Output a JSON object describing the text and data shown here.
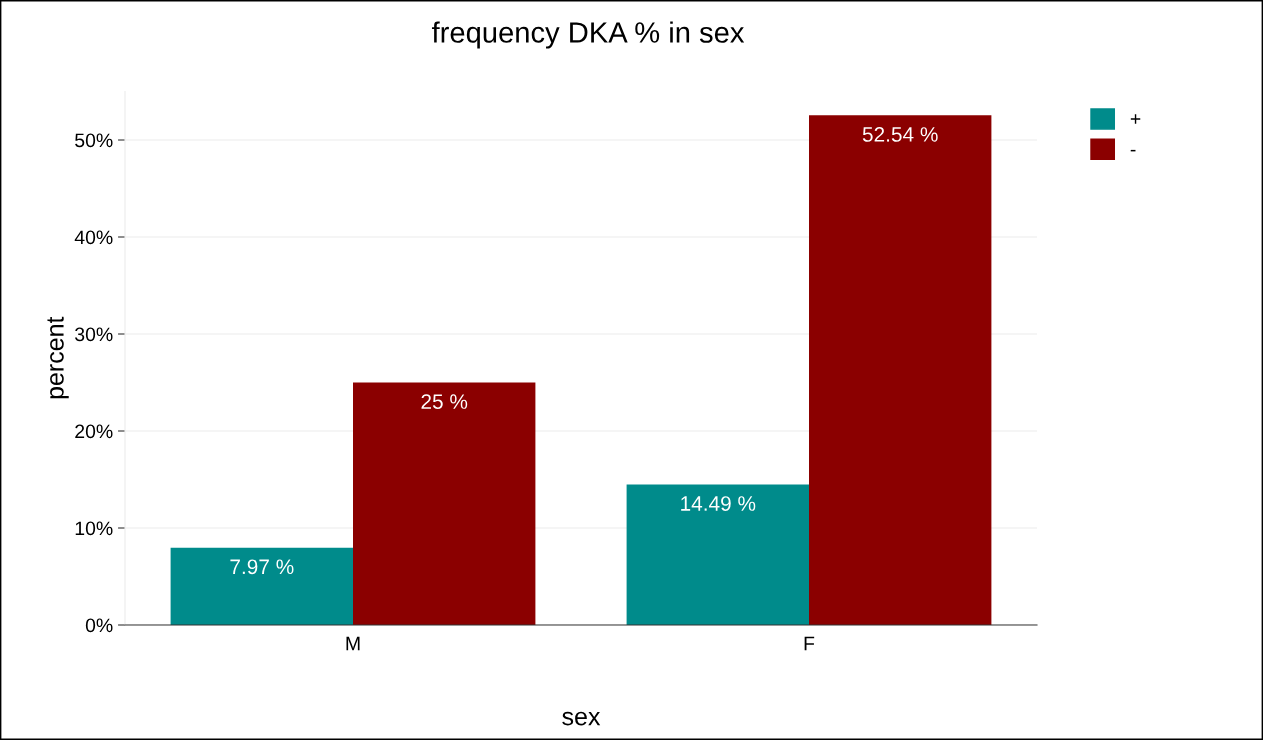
{
  "chart_data": {
    "type": "bar",
    "title": "frequency DKA % in sex",
    "xlabel": "sex",
    "ylabel": "percent",
    "categories": [
      "M",
      "F"
    ],
    "series": [
      {
        "name": "+",
        "color": "#008b8b",
        "values": [
          7.97,
          14.49
        ],
        "value_labels": [
          "7.97 %",
          "14.49 %"
        ]
      },
      {
        "name": "-",
        "color": "#8b0000",
        "values": [
          25,
          52.54
        ],
        "value_labels": [
          "25 %",
          "52.54 %"
        ]
      }
    ],
    "yticks": [
      {
        "value": 0,
        "label": "0%"
      },
      {
        "value": 10,
        "label": "10%"
      },
      {
        "value": 20,
        "label": "20%"
      },
      {
        "value": 30,
        "label": "30%"
      },
      {
        "value": 40,
        "label": "40%"
      },
      {
        "value": 50,
        "label": "50%"
      }
    ],
    "ylim": [
      0,
      55
    ],
    "grid": "y",
    "legend": "top right"
  }
}
